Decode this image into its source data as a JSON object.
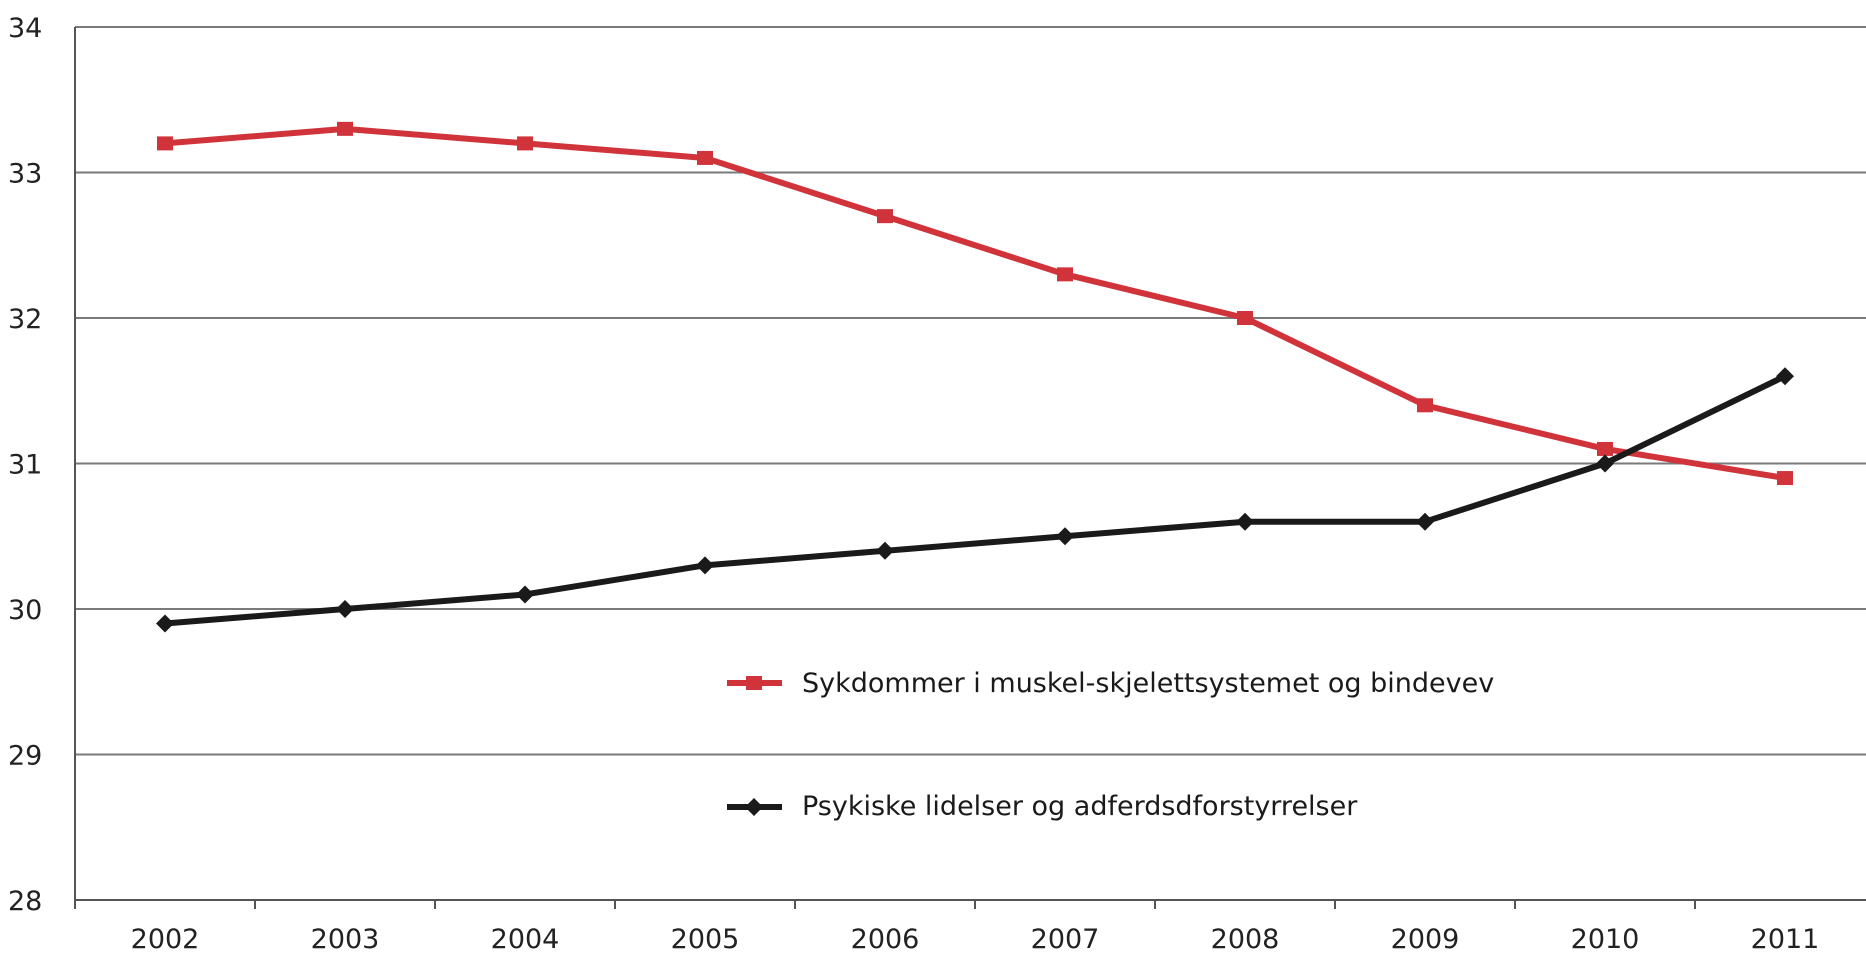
{
  "chart_data": {
    "type": "line",
    "title": "",
    "xlabel": "",
    "ylabel": "",
    "categories": [
      "2002",
      "2003",
      "2004",
      "2005",
      "2006",
      "2007",
      "2008",
      "2009",
      "2010",
      "2011"
    ],
    "ylim": [
      28,
      34
    ],
    "yticks": [
      "28",
      "29",
      "30",
      "31",
      "32",
      "33",
      "34"
    ],
    "grid": true,
    "legend_position": "lower-center",
    "series": [
      {
        "name": "Sykdommer i muskel-skjelettsystemet og bindevev",
        "color": "#d0343a",
        "marker": "square",
        "values": [
          33.2,
          33.3,
          33.2,
          33.1,
          32.7,
          32.3,
          32.0,
          31.4,
          31.1,
          30.9
        ]
      },
      {
        "name": "Psykiske lidelser og adferdsdforstyrrelser",
        "color": "#1a1a1a",
        "marker": "diamond",
        "values": [
          29.9,
          30.0,
          30.1,
          30.3,
          30.4,
          30.5,
          30.6,
          30.6,
          31.0,
          31.6
        ]
      }
    ]
  }
}
